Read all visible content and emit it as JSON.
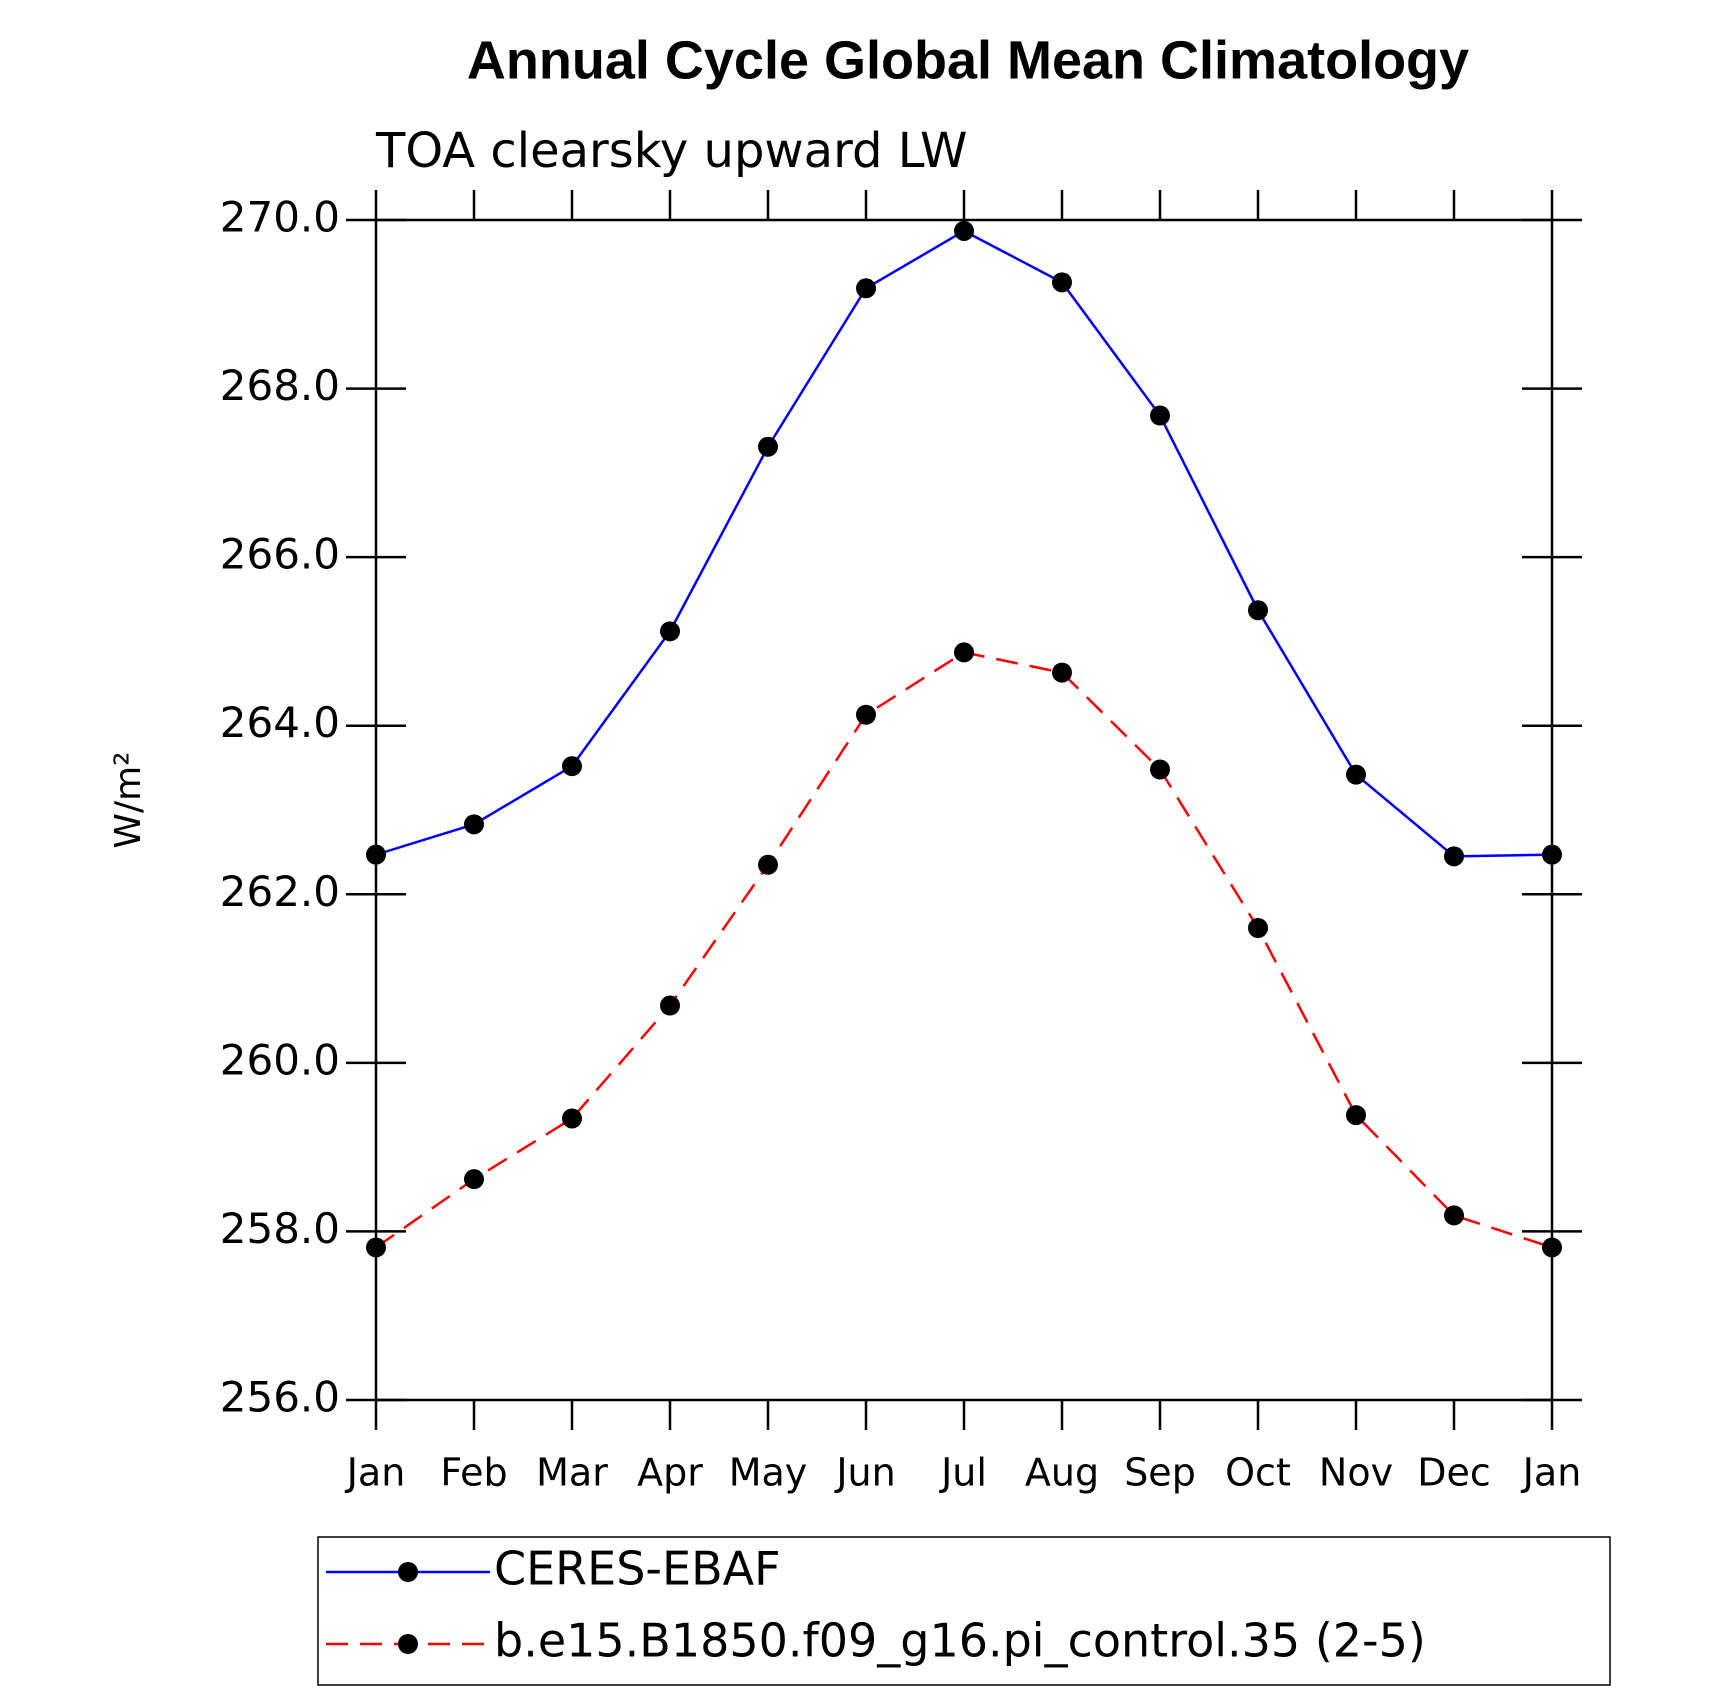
{
  "chart_data": {
    "type": "line",
    "title": "Annual Cycle Global Mean Climatology",
    "subtitle": "TOA clearsky upward LW",
    "y_label": "W/m²",
    "categories": [
      "Jan",
      "Feb",
      "Mar",
      "Apr",
      "May",
      "Jun",
      "Jul",
      "Aug",
      "Sep",
      "Oct",
      "Nov",
      "Dec",
      "Jan"
    ],
    "series": [
      {
        "name": "CERES-EBAF",
        "color": "#0000ff",
        "dash": false,
        "values": [
          262.47,
          262.83,
          263.52,
          265.12,
          267.31,
          269.19,
          269.87,
          269.26,
          267.68,
          265.37,
          263.42,
          262.45,
          262.47
        ]
      },
      {
        "name": "b.e15.B1850.f09_g16.pi_control.35 (2-5)",
        "color": "#ff0000",
        "dash": true,
        "values": [
          257.81,
          258.62,
          259.34,
          260.68,
          262.35,
          264.13,
          264.87,
          264.63,
          263.48,
          261.6,
          259.38,
          258.19,
          257.81
        ]
      }
    ],
    "ylim": [
      256,
      270
    ],
    "yticks": [
      {
        "value": 256,
        "label": "256.0"
      },
      {
        "value": 258,
        "label": "258.0"
      },
      {
        "value": 260,
        "label": "260.0"
      },
      {
        "value": 262,
        "label": "262.0"
      },
      {
        "value": 264,
        "label": "264.0"
      },
      {
        "value": 266,
        "label": "266.0"
      },
      {
        "value": 268,
        "label": "268.0"
      },
      {
        "value": 270,
        "label": "270.0"
      }
    ],
    "marker_color": "#000000"
  }
}
